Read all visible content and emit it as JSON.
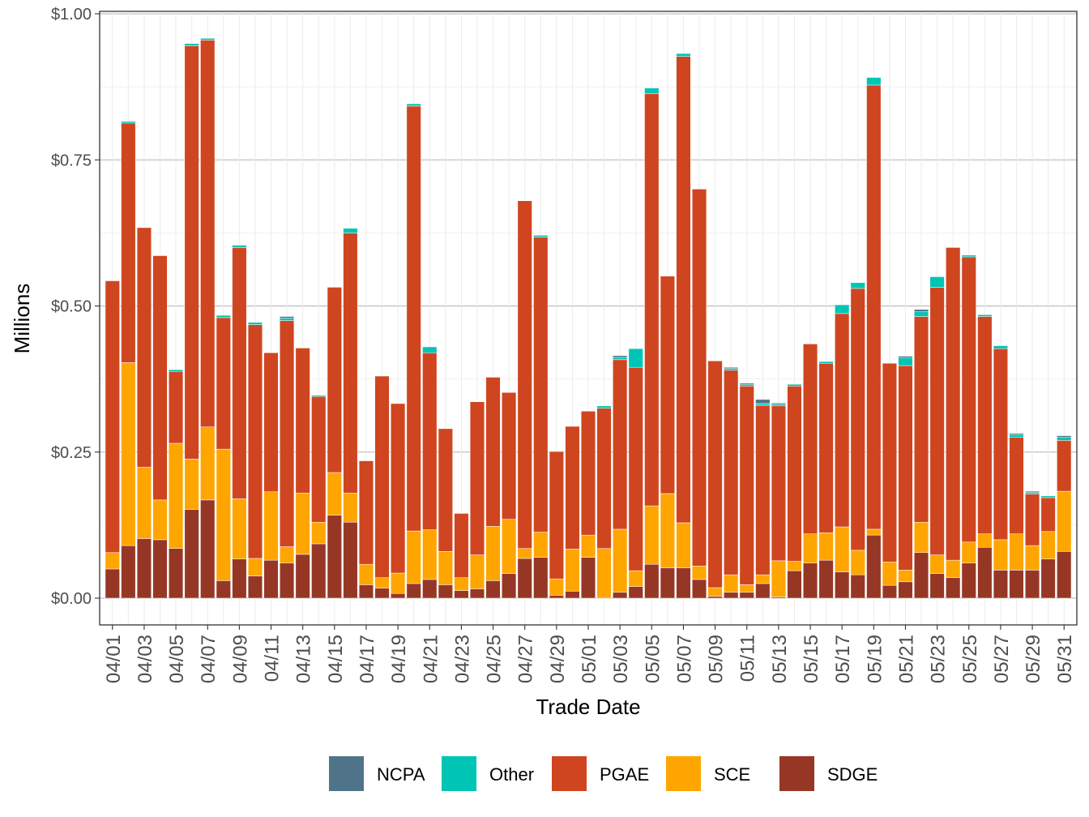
{
  "chart_data": {
    "type": "bar",
    "stacked": true,
    "xlabel": "Trade Date",
    "ylabel": "Millions",
    "ylim": [
      0,
      1.0
    ],
    "y_ticks": [
      0,
      0.25,
      0.5,
      0.75,
      1.0
    ],
    "y_tick_labels": [
      "$0.00",
      "$0.25",
      "$0.50",
      "$0.75",
      "$1.00"
    ],
    "grid": true,
    "legend_position": "bottom",
    "categories": [
      "04/01",
      "04/02",
      "04/03",
      "04/04",
      "04/05",
      "04/06",
      "04/07",
      "04/08",
      "04/09",
      "04/10",
      "04/11",
      "04/12",
      "04/13",
      "04/14",
      "04/15",
      "04/16",
      "04/17",
      "04/18",
      "04/19",
      "04/20",
      "04/21",
      "04/22",
      "04/23",
      "04/24",
      "04/25",
      "04/26",
      "04/27",
      "04/28",
      "04/29",
      "04/30",
      "05/01",
      "05/02",
      "05/03",
      "05/04",
      "05/05",
      "05/06",
      "05/07",
      "05/08",
      "05/09",
      "05/10",
      "05/11",
      "05/12",
      "05/13",
      "05/14",
      "05/15",
      "05/16",
      "05/17",
      "05/18",
      "05/19",
      "05/20",
      "05/21",
      "05/22",
      "05/23",
      "05/24",
      "05/25",
      "05/26",
      "05/27",
      "05/28",
      "05/29",
      "05/30",
      "05/31"
    ],
    "x_tick_labels": [
      "04/01",
      "04/03",
      "04/05",
      "04/07",
      "04/09",
      "04/11",
      "04/13",
      "04/15",
      "04/17",
      "04/19",
      "04/21",
      "04/23",
      "04/25",
      "04/27",
      "04/29",
      "05/01",
      "05/03",
      "05/05",
      "05/07",
      "05/09",
      "05/11",
      "05/13",
      "05/15",
      "05/17",
      "05/19",
      "05/21",
      "05/23",
      "05/25",
      "05/27",
      "05/29",
      "05/31"
    ],
    "series": [
      {
        "name": "SDGE",
        "color": "#963726",
        "values": [
          0.05,
          0.09,
          0.102,
          0.1,
          0.085,
          0.152,
          0.168,
          0.03,
          0.067,
          0.038,
          0.065,
          0.06,
          0.075,
          0.093,
          0.142,
          0.13,
          0.023,
          0.017,
          0.008,
          0.025,
          0.032,
          0.023,
          0.013,
          0.016,
          0.03,
          0.042,
          0.068,
          0.07,
          0.005,
          0.012,
          0.07,
          0.0,
          0.01,
          0.02,
          0.058,
          0.052,
          0.052,
          0.032,
          0.003,
          0.01,
          0.01,
          0.025,
          0.002,
          0.047,
          0.06,
          0.065,
          0.045,
          0.04,
          0.108,
          0.022,
          0.028,
          0.078,
          0.042,
          0.035,
          0.06,
          0.087,
          0.048,
          0.048,
          0.048,
          0.067,
          0.08
        ]
      },
      {
        "name": "SCE",
        "color": "#FFA500",
        "values": [
          0.028,
          0.313,
          0.122,
          0.068,
          0.18,
          0.086,
          0.125,
          0.225,
          0.103,
          0.03,
          0.117,
          0.028,
          0.105,
          0.037,
          0.073,
          0.05,
          0.035,
          0.018,
          0.035,
          0.09,
          0.085,
          0.057,
          0.022,
          0.058,
          0.093,
          0.093,
          0.017,
          0.043,
          0.028,
          0.072,
          0.038,
          0.085,
          0.108,
          0.027,
          0.1,
          0.127,
          0.077,
          0.023,
          0.015,
          0.03,
          0.013,
          0.015,
          0.062,
          0.016,
          0.05,
          0.047,
          0.077,
          0.042,
          0.01,
          0.04,
          0.02,
          0.052,
          0.032,
          0.03,
          0.036,
          0.023,
          0.052,
          0.062,
          0.042,
          0.047,
          0.103
        ]
      },
      {
        "name": "PGAE",
        "color": "#CF4520",
        "values": [
          0.465,
          0.41,
          0.41,
          0.418,
          0.123,
          0.707,
          0.662,
          0.225,
          0.43,
          0.4,
          0.238,
          0.387,
          0.248,
          0.215,
          0.317,
          0.445,
          0.177,
          0.345,
          0.29,
          0.727,
          0.303,
          0.21,
          0.11,
          0.262,
          0.255,
          0.217,
          0.595,
          0.505,
          0.218,
          0.21,
          0.212,
          0.24,
          0.29,
          0.348,
          0.705,
          0.372,
          0.798,
          0.645,
          0.388,
          0.35,
          0.34,
          0.29,
          0.265,
          0.3,
          0.325,
          0.29,
          0.365,
          0.448,
          0.76,
          0.34,
          0.35,
          0.352,
          0.458,
          0.535,
          0.488,
          0.372,
          0.327,
          0.165,
          0.088,
          0.058,
          0.087
        ]
      },
      {
        "name": "Other",
        "color": "#00C5B5",
        "values": [
          0,
          0.003,
          0,
          0,
          0.003,
          0.004,
          0.003,
          0.004,
          0.004,
          0.004,
          0,
          0.004,
          0,
          0.002,
          0,
          0.008,
          0,
          0,
          0,
          0.004,
          0.01,
          0,
          0,
          0,
          0,
          0,
          0,
          0.003,
          0,
          0,
          0,
          0.004,
          0.004,
          0.032,
          0.01,
          0,
          0.005,
          0,
          0,
          0.003,
          0.003,
          0.003,
          0.003,
          0.003,
          0,
          0.003,
          0.015,
          0.01,
          0.013,
          0,
          0.013,
          0.008,
          0.018,
          0,
          0.003,
          0.003,
          0.005,
          0.005,
          0.003,
          0.003,
          0.005
        ]
      },
      {
        "name": "NCPA",
        "color": "#4F7489",
        "values": [
          0,
          0,
          0,
          0,
          0,
          0,
          0,
          0,
          0,
          0,
          0,
          0.003,
          0,
          0,
          0,
          0,
          0,
          0,
          0,
          0,
          0,
          0,
          0,
          0,
          0,
          0,
          0,
          0,
          0,
          0,
          0,
          0,
          0.003,
          0,
          0,
          0,
          0,
          0,
          0,
          0.002,
          0.002,
          0.007,
          0.002,
          0,
          0,
          0,
          0,
          0,
          0,
          0,
          0.003,
          0.004,
          0,
          0,
          0,
          0,
          0,
          0.002,
          0.002,
          0,
          0.003
        ]
      }
    ],
    "legend": [
      "NCPA",
      "Other",
      "PGAE",
      "SCE",
      "SDGE"
    ]
  }
}
